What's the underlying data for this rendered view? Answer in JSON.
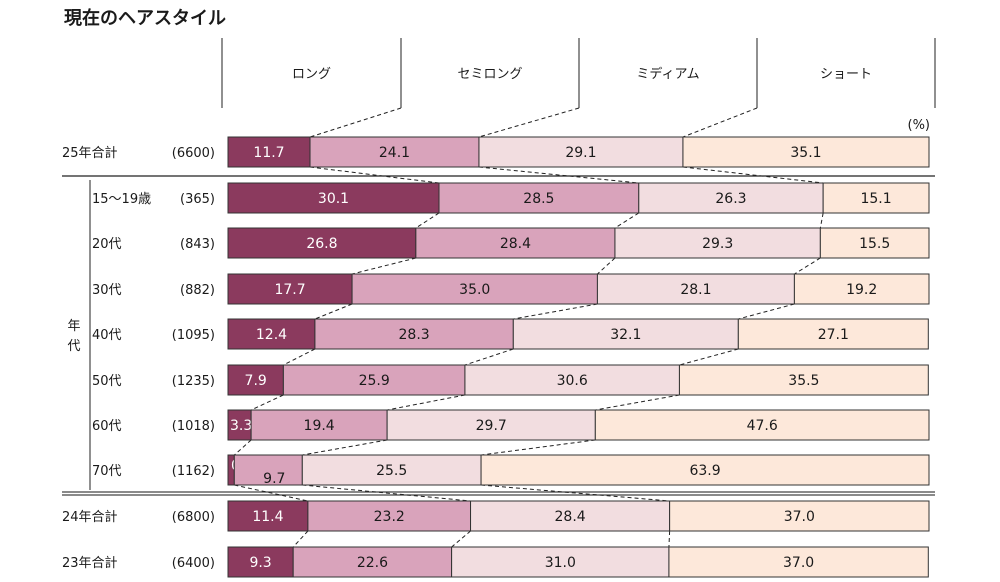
{
  "title": "現在のヘアスタイル",
  "chart_data": {
    "type": "bar",
    "orientation": "horizontal",
    "stacked": true,
    "normalized_100": true,
    "title": "現在のヘアスタイル",
    "unit_label": "(%)",
    "categories_legend": [
      "ロング",
      "セミロング",
      "ミディアム",
      "ショート"
    ],
    "series_colors": [
      "#8b3a5e",
      "#d9a3bb",
      "#f2dde0",
      "#fde8da"
    ],
    "label_colors": [
      "#ffffff",
      "#1a1a1a",
      "#1a1a1a",
      "#1a1a1a"
    ],
    "group_label": "年代",
    "rows": [
      {
        "label": "25年合計",
        "n": "(6600)",
        "group": "total",
        "values": [
          11.7,
          24.1,
          29.1,
          35.1
        ]
      },
      {
        "label": "15〜19歳",
        "n": "(365)",
        "group": "age",
        "values": [
          30.1,
          28.5,
          26.3,
          15.1
        ]
      },
      {
        "label": "20代",
        "n": "(843)",
        "group": "age",
        "values": [
          26.8,
          28.4,
          29.3,
          15.5
        ]
      },
      {
        "label": "30代",
        "n": "(882)",
        "group": "age",
        "values": [
          17.7,
          35.0,
          28.1,
          19.2
        ]
      },
      {
        "label": "40代",
        "n": "(1095)",
        "group": "age",
        "values": [
          12.4,
          28.3,
          32.1,
          27.1
        ]
      },
      {
        "label": "50代",
        "n": "(1235)",
        "group": "age",
        "values": [
          7.9,
          25.9,
          30.6,
          35.5
        ]
      },
      {
        "label": "60代",
        "n": "(1018)",
        "group": "age",
        "values": [
          3.3,
          19.4,
          29.7,
          47.6
        ]
      },
      {
        "label": "70代",
        "n": "(1162)",
        "group": "age",
        "values": [
          0.9,
          9.7,
          25.5,
          63.9
        ]
      },
      {
        "label": "24年合計",
        "n": "(6800)",
        "group": "past",
        "values": [
          11.4,
          23.2,
          28.4,
          37.0
        ]
      },
      {
        "label": "23年合計",
        "n": "(6400)",
        "group": "past",
        "values": [
          9.3,
          22.6,
          31.0,
          37.0
        ]
      }
    ],
    "xlim": [
      0,
      100
    ],
    "grid": false,
    "legend": "top"
  }
}
